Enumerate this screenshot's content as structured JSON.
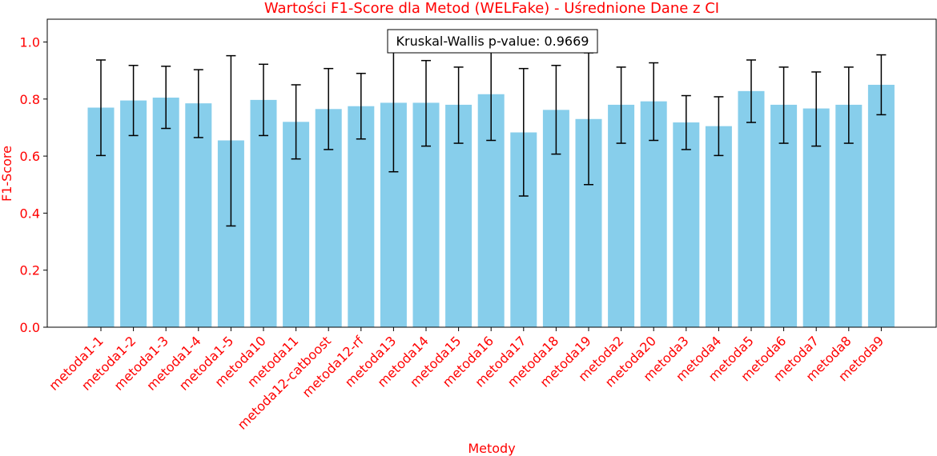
{
  "chart_data": {
    "type": "bar",
    "title": "Wartości F1-Score dla Metod (WELFake) - Uśrednione Dane z CI",
    "xlabel": "Metody",
    "ylabel": "F1-Score",
    "ylim": [
      0,
      1.08
    ],
    "yticks": [
      "0.0",
      "0.2",
      "0.4",
      "0.6",
      "0.8",
      "1.0"
    ],
    "grid": false,
    "bar_color": "#87ceeb",
    "text_color": "#ff0000",
    "annotation": "Kruskal-Wallis p-value: 0.9669",
    "categories": [
      "metoda1-1",
      "metoda1-2",
      "metoda1-3",
      "metoda1-4",
      "metoda1-5",
      "metoda10",
      "metoda11",
      "metoda12-catboost",
      "metoda12-rf",
      "metoda13",
      "metoda14",
      "metoda15",
      "metoda16",
      "metoda17",
      "metoda18",
      "metoda19",
      "metoda2",
      "metoda20",
      "metoda3",
      "metoda4",
      "metoda5",
      "metoda6",
      "metoda7",
      "metoda8",
      "metoda9"
    ],
    "values": [
      0.77,
      0.795,
      0.805,
      0.785,
      0.655,
      0.797,
      0.72,
      0.765,
      0.775,
      0.787,
      0.787,
      0.78,
      0.817,
      0.683,
      0.762,
      0.73,
      0.78,
      0.792,
      0.718,
      0.705,
      0.828,
      0.78,
      0.767,
      0.78,
      0.85
    ],
    "ci_low": [
      0.602,
      0.672,
      0.697,
      0.665,
      0.355,
      0.672,
      0.59,
      0.623,
      0.66,
      0.545,
      0.635,
      0.645,
      0.655,
      0.46,
      0.607,
      0.5,
      0.645,
      0.655,
      0.623,
      0.602,
      0.718,
      0.645,
      0.635,
      0.645,
      0.745
    ],
    "ci_high": [
      0.937,
      0.918,
      0.915,
      0.903,
      0.952,
      0.922,
      0.85,
      0.907,
      0.89,
      1.03,
      0.935,
      0.912,
      0.978,
      0.907,
      0.918,
      0.962,
      0.912,
      0.927,
      0.812,
      0.808,
      0.937,
      0.912,
      0.895,
      0.912,
      0.955
    ]
  }
}
